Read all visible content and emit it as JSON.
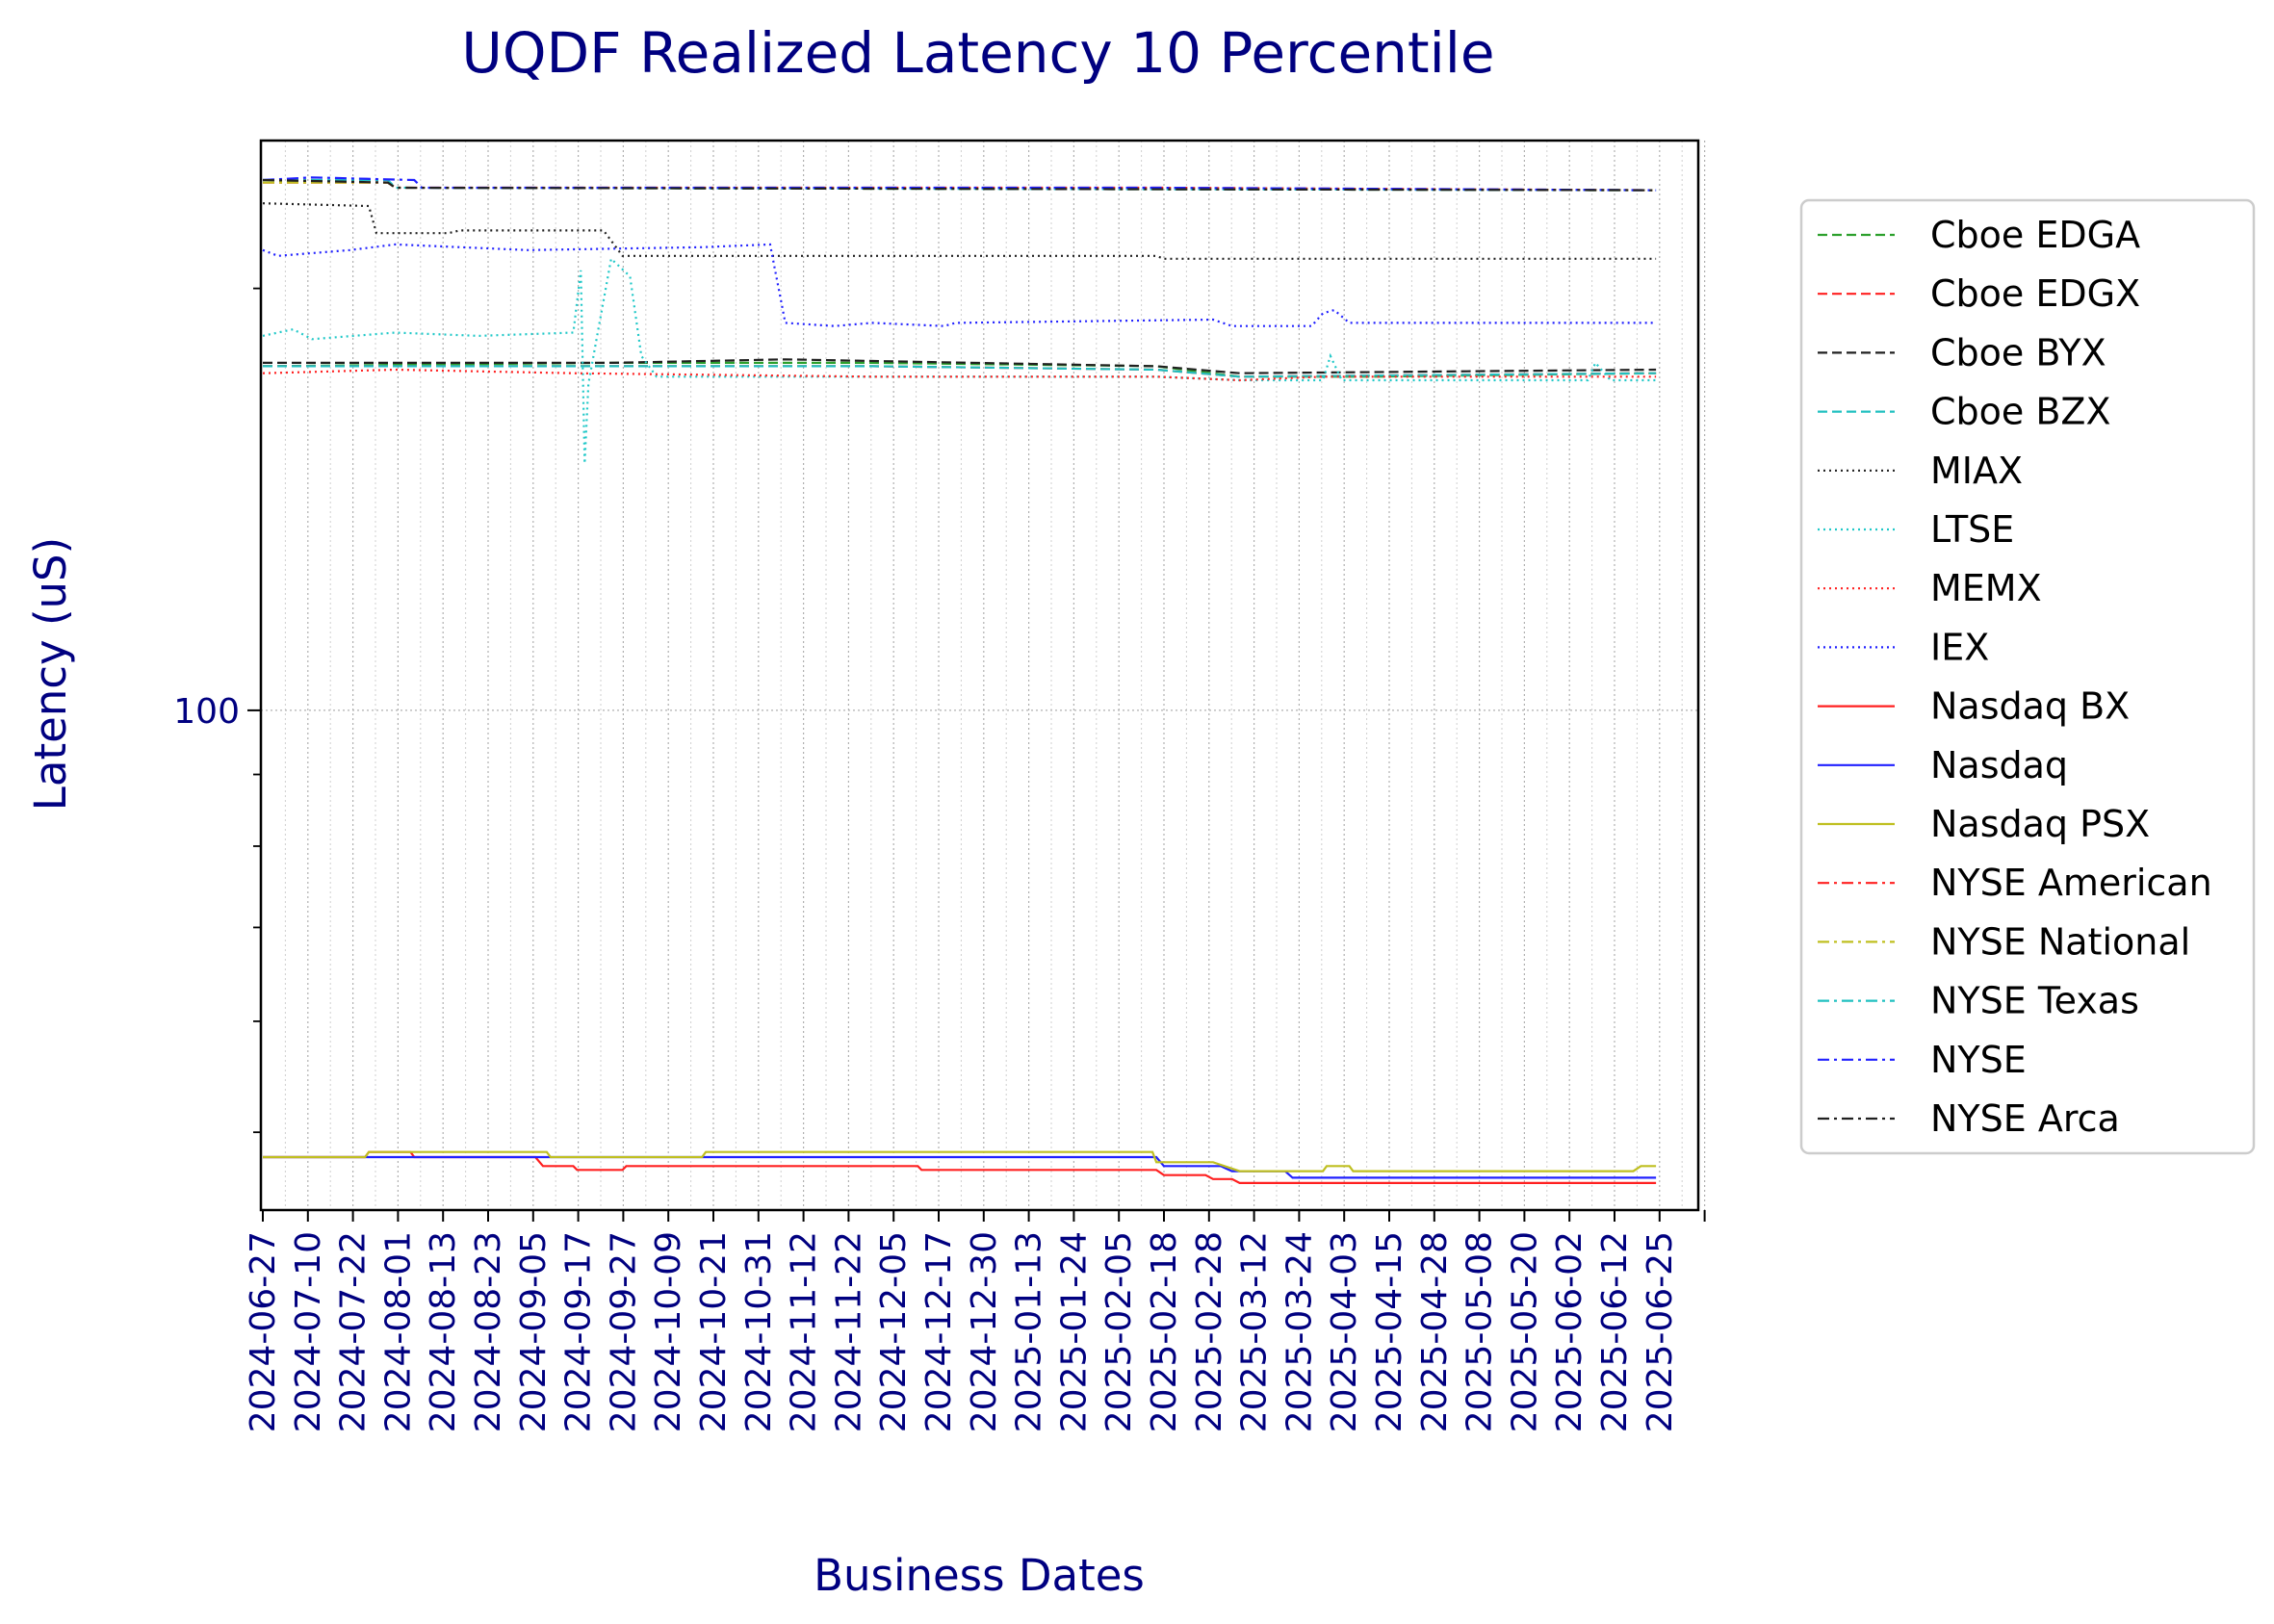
{
  "chart_data": {
    "type": "line",
    "title": "UQDF Realized Latency 10 Percentile",
    "xlabel": "Business Dates",
    "ylabel": "Latency (uS)",
    "y_scale": "log",
    "grid": true,
    "legend_position": "right, outside plot",
    "yticks": [
      100
    ],
    "ytick_labels": [
      "100"
    ],
    "ylim": [
      44,
      255
    ],
    "x_tick_labels": [
      "2024-06-27",
      "2024-07-10",
      "2024-07-22",
      "2024-08-01",
      "2024-08-13",
      "2024-08-23",
      "2024-09-05",
      "2024-09-17",
      "2024-09-27",
      "2024-10-09",
      "2024-10-21",
      "2024-10-31",
      "2024-11-12",
      "2024-11-22",
      "2024-12-05",
      "2024-12-17",
      "2024-12-30",
      "2025-01-13",
      "2025-01-24",
      "2025-02-05",
      "2025-02-18",
      "2025-02-28",
      "2025-03-12",
      "2025-03-24",
      "2025-04-03",
      "2025-04-15",
      "2025-04-28",
      "2025-05-08",
      "2025-05-20",
      "2025-06-02",
      "2025-06-12",
      "2025-06-25"
    ],
    "series": [
      {
        "name": "Cboe EDGA",
        "color": "#2ca02c",
        "style": "dashed",
        "points": [
          [
            "2024-06-27",
            176
          ],
          [
            "2024-09-27",
            177
          ],
          [
            "2024-12-05",
            177
          ],
          [
            "2025-02-18",
            176
          ],
          [
            "2025-03-12",
            173
          ],
          [
            "2025-04-15",
            173
          ],
          [
            "2025-06-30",
            174
          ]
        ]
      },
      {
        "name": "Cboe EDGX",
        "color": "#ff2020",
        "style": "dashed",
        "points": [
          [
            "2024-06-27",
            176
          ],
          [
            "2024-12-05",
            176
          ],
          [
            "2025-02-18",
            175
          ],
          [
            "2025-03-12",
            173
          ],
          [
            "2025-06-30",
            174
          ]
        ]
      },
      {
        "name": "Cboe BYX",
        "color": "#202020",
        "style": "dashed",
        "points": [
          [
            "2024-06-27",
            177
          ],
          [
            "2024-09-27",
            177
          ],
          [
            "2024-11-12",
            178
          ],
          [
            "2025-02-18",
            176
          ],
          [
            "2025-03-12",
            174
          ],
          [
            "2025-06-30",
            175
          ]
        ]
      },
      {
        "name": "Cboe BZX",
        "color": "#20c0c0",
        "style": "dashed",
        "points": [
          [
            "2024-06-27",
            176
          ],
          [
            "2024-12-05",
            176
          ],
          [
            "2025-02-18",
            175
          ],
          [
            "2025-03-12",
            173
          ],
          [
            "2025-06-30",
            174
          ]
        ]
      },
      {
        "name": "MIAX",
        "color": "#202020",
        "style": "dotted",
        "points": [
          [
            "2024-06-27",
            230
          ],
          [
            "2024-07-25",
            229
          ],
          [
            "2024-07-27",
            219
          ],
          [
            "2024-08-15",
            219
          ],
          [
            "2024-08-18",
            220
          ],
          [
            "2024-09-25",
            220
          ],
          [
            "2024-09-30",
            211
          ],
          [
            "2025-02-18",
            211
          ],
          [
            "2025-02-20",
            210
          ],
          [
            "2025-04-15",
            210
          ],
          [
            "2025-06-30",
            210
          ]
        ]
      },
      {
        "name": "LTSE",
        "color": "#20c8c8",
        "style": "dotted",
        "points": [
          [
            "2024-06-27",
            185
          ],
          [
            "2024-07-05",
            187
          ],
          [
            "2024-07-10",
            184
          ],
          [
            "2024-08-01",
            186
          ],
          [
            "2024-08-23",
            185
          ],
          [
            "2024-09-17",
            186
          ],
          [
            "2024-09-19",
            206
          ],
          [
            "2024-09-20",
            150
          ],
          [
            "2024-09-21",
            171
          ],
          [
            "2024-09-27",
            210
          ],
          [
            "2024-10-02",
            204
          ],
          [
            "2024-10-05",
            179
          ],
          [
            "2024-10-09",
            173
          ],
          [
            "2025-02-18",
            173
          ],
          [
            "2025-03-12",
            172
          ],
          [
            "2025-03-24",
            172
          ],
          [
            "2025-04-03",
            172
          ],
          [
            "2025-04-05",
            179
          ],
          [
            "2025-04-08",
            172
          ],
          [
            "2025-06-12",
            172
          ],
          [
            "2025-06-14",
            177
          ],
          [
            "2025-06-18",
            172
          ],
          [
            "2025-06-30",
            172
          ]
        ]
      },
      {
        "name": "MEMX",
        "color": "#ff2020",
        "style": "dotted",
        "points": [
          [
            "2024-06-27",
            174
          ],
          [
            "2024-08-01",
            175
          ],
          [
            "2024-09-17",
            174
          ],
          [
            "2024-12-05",
            173
          ],
          [
            "2025-02-18",
            173
          ],
          [
            "2025-03-12",
            172
          ],
          [
            "2025-04-03",
            173
          ],
          [
            "2025-06-30",
            173
          ]
        ]
      },
      {
        "name": "IEX",
        "color": "#2020ff",
        "style": "dotted",
        "points": [
          [
            "2024-06-27",
            213
          ],
          [
            "2024-07-01",
            211
          ],
          [
            "2024-07-20",
            213
          ],
          [
            "2024-08-01",
            215
          ],
          [
            "2024-09-05",
            213
          ],
          [
            "2024-10-21",
            214
          ],
          [
            "2024-11-08",
            215
          ],
          [
            "2024-11-12",
            189
          ],
          [
            "2024-11-25",
            188
          ],
          [
            "2024-12-05",
            189
          ],
          [
            "2024-12-24",
            188
          ],
          [
            "2024-12-27",
            189
          ],
          [
            "2025-03-05",
            190
          ],
          [
            "2025-03-10",
            188
          ],
          [
            "2025-03-31",
            188
          ],
          [
            "2025-04-03",
            192
          ],
          [
            "2025-04-06",
            193
          ],
          [
            "2025-04-10",
            189
          ],
          [
            "2025-06-30",
            189
          ]
        ]
      },
      {
        "name": "Nasdaq BX",
        "color": "#ff2020",
        "style": "solid",
        "points": [
          [
            "2024-06-27",
            48
          ],
          [
            "2024-07-24",
            48
          ],
          [
            "2024-07-25",
            48.4
          ],
          [
            "2024-08-05",
            48.4
          ],
          [
            "2024-08-06",
            48
          ],
          [
            "2024-09-07",
            48
          ],
          [
            "2024-09-09",
            47.3
          ],
          [
            "2024-09-17",
            47.3
          ],
          [
            "2024-09-18",
            47
          ],
          [
            "2024-09-30",
            47
          ],
          [
            "2024-10-01",
            47.3
          ],
          [
            "2024-12-17",
            47.3
          ],
          [
            "2024-12-18",
            47
          ],
          [
            "2025-02-18",
            47
          ],
          [
            "2025-02-20",
            46.6
          ],
          [
            "2025-03-03",
            46.6
          ],
          [
            "2025-03-05",
            46.3
          ],
          [
            "2025-03-10",
            46.3
          ],
          [
            "2025-03-12",
            46
          ],
          [
            "2025-06-30",
            46
          ]
        ]
      },
      {
        "name": "Nasdaq",
        "color": "#2020ff",
        "style": "solid",
        "points": [
          [
            "2024-06-27",
            48
          ],
          [
            "2025-02-18",
            48
          ],
          [
            "2025-02-20",
            47.3
          ],
          [
            "2025-03-07",
            47.3
          ],
          [
            "2025-03-10",
            46.9
          ],
          [
            "2025-03-24",
            46.9
          ],
          [
            "2025-03-26",
            46.4
          ],
          [
            "2025-06-30",
            46.4
          ]
        ]
      },
      {
        "name": "Nasdaq PSX",
        "color": "#bfbf20",
        "style": "solid",
        "points": [
          [
            "2024-06-27",
            48
          ],
          [
            "2024-07-24",
            48
          ],
          [
            "2024-07-25",
            48.4
          ],
          [
            "2024-09-10",
            48.4
          ],
          [
            "2024-09-11",
            48
          ],
          [
            "2024-10-21",
            48
          ],
          [
            "2024-10-22",
            48.4
          ],
          [
            "2025-02-17",
            48.4
          ],
          [
            "2025-02-18",
            47.6
          ],
          [
            "2025-03-05",
            47.6
          ],
          [
            "2025-03-12",
            46.9
          ],
          [
            "2025-04-03",
            46.9
          ],
          [
            "2025-04-04",
            47.3
          ],
          [
            "2025-04-10",
            47.3
          ],
          [
            "2025-04-11",
            46.9
          ],
          [
            "2025-06-24",
            46.9
          ],
          [
            "2025-06-26",
            47.3
          ],
          [
            "2025-06-30",
            47.3
          ]
        ]
      },
      {
        "name": "NYSE American",
        "color": "#ff2020",
        "style": "dashdot",
        "points": [
          [
            "2024-06-27",
            238
          ],
          [
            "2024-07-30",
            238
          ],
          [
            "2024-08-01",
            236
          ],
          [
            "2025-02-18",
            236
          ],
          [
            "2025-06-30",
            235
          ]
        ]
      },
      {
        "name": "NYSE National",
        "color": "#bfbf20",
        "style": "dashdot",
        "points": [
          [
            "2024-06-27",
            238
          ],
          [
            "2024-07-30",
            238
          ],
          [
            "2024-08-01",
            236
          ],
          [
            "2025-06-30",
            235
          ]
        ]
      },
      {
        "name": "NYSE Texas",
        "color": "#20c0c0",
        "style": "dashdot",
        "points": [
          [
            "2024-06-27",
            239
          ],
          [
            "2024-07-30",
            239
          ],
          [
            "2024-08-01",
            236
          ],
          [
            "2025-06-30",
            235
          ]
        ]
      },
      {
        "name": "NYSE",
        "color": "#2020ff",
        "style": "dashdot",
        "points": [
          [
            "2024-06-27",
            239
          ],
          [
            "2024-07-10",
            240
          ],
          [
            "2024-08-06",
            239
          ],
          [
            "2024-08-08",
            236
          ],
          [
            "2025-02-18",
            236
          ],
          [
            "2025-06-30",
            235
          ]
        ]
      },
      {
        "name": "NYSE Arca",
        "color": "#202020",
        "style": "dashdot",
        "points": [
          [
            "2024-06-27",
            239
          ],
          [
            "2024-07-30",
            238
          ],
          [
            "2024-08-01",
            236
          ],
          [
            "2025-06-30",
            235
          ]
        ]
      }
    ]
  }
}
